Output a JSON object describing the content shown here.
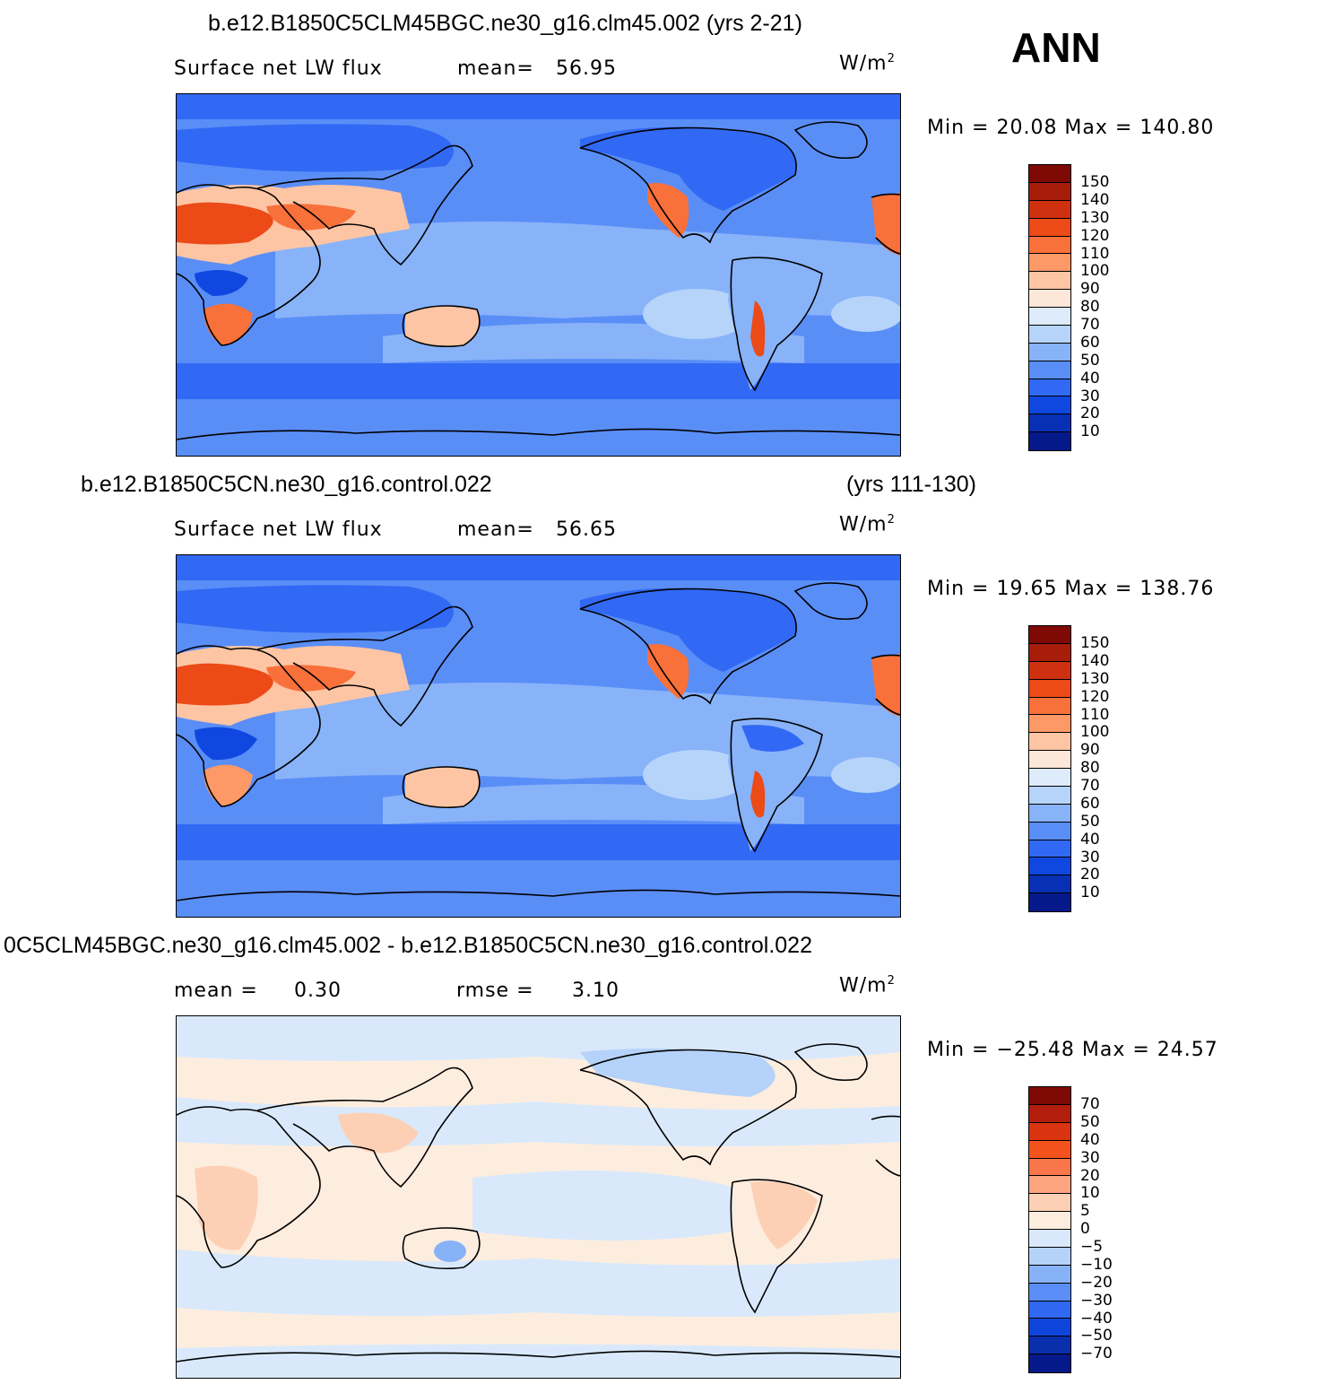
{
  "season": "ANN",
  "panels": [
    {
      "title": "b.e12.B1850C5CLM45BGC.ne30_g16.clm45.002 (yrs 2-21)",
      "title_years": "",
      "variable": "Surface  net  LW  flux",
      "stat1_label": "mean=",
      "stat1_value": "56.95",
      "stat2_label": "",
      "stat2_value": "",
      "units": "W/m",
      "units_sup": "2",
      "minmax": "Min  =    20.08  Max  =  140.80",
      "colorbar": {
        "colors": [
          "#7f0a05",
          "#a81c0a",
          "#cf300f",
          "#ec4a17",
          "#f8703a",
          "#fc9967",
          "#fdc5a4",
          "#fde7d8",
          "#ddebfa",
          "#b6d4fa",
          "#88b3f9",
          "#5a8ef7",
          "#3169f4",
          "#0f47e0",
          "#0830b4",
          "#06198a"
        ],
        "labels": [
          "150",
          "140",
          "130",
          "120",
          "110",
          "100",
          "90",
          "80",
          "70",
          "60",
          "50",
          "40",
          "30",
          "20",
          "10"
        ]
      }
    },
    {
      "title": "b.e12.B1850C5CN.ne30_g16.control.022",
      "title_years": "(yrs 111-130)",
      "variable": "Surface  net  LW  flux",
      "stat1_label": "mean=",
      "stat1_value": "56.65",
      "stat2_label": "",
      "stat2_value": "",
      "units": "W/m",
      "units_sup": "2",
      "minmax": "Min  =    19.65  Max  =  138.76",
      "colorbar": {
        "colors": [
          "#7f0a05",
          "#a81c0a",
          "#cf300f",
          "#ec4a17",
          "#f8703a",
          "#fc9967",
          "#fdc5a4",
          "#fde7d8",
          "#ddebfa",
          "#b6d4fa",
          "#88b3f9",
          "#5a8ef7",
          "#3169f4",
          "#0f47e0",
          "#0830b4",
          "#06198a"
        ],
        "labels": [
          "150",
          "140",
          "130",
          "120",
          "110",
          "100",
          "90",
          "80",
          "70",
          "60",
          "50",
          "40",
          "30",
          "20",
          "10"
        ]
      }
    },
    {
      "title": "0C5CLM45BGC.ne30_g16.clm45.002 - b.e12.B1850C5CN.ne30_g16.control.022",
      "title_years": "",
      "variable": "",
      "stat1_label": "mean  =",
      "stat1_value": "0.30",
      "stat2_label": "rmse  =",
      "stat2_value": "3.10",
      "units": "W/m",
      "units_sup": "2",
      "minmax": "Min  =  −25.48  Max  =    24.57",
      "colorbar": {
        "colors": [
          "#7f0a05",
          "#b31d0b",
          "#d9340f",
          "#f4521c",
          "#f8764a",
          "#fca57f",
          "#fdd0b5",
          "#fdeddf",
          "#d9e9fb",
          "#b5d2fa",
          "#87b2f8",
          "#5a8df6",
          "#3068f1",
          "#0f45da",
          "#0a2fac",
          "#06198a"
        ],
        "labels": [
          "70",
          "50",
          "40",
          "30",
          "20",
          "10",
          "5",
          "0",
          "−5",
          "−10",
          "−20",
          "−30",
          "−40",
          "−50",
          "−70"
        ]
      }
    }
  ]
}
